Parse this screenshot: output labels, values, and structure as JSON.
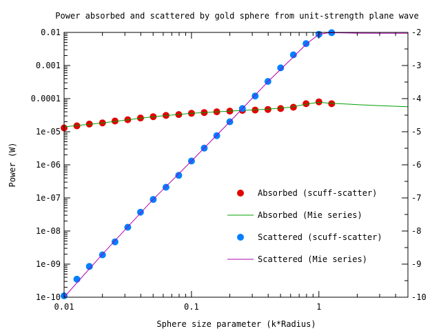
{
  "chart_data": {
    "type": "scatter",
    "title": "Power absorbed and scattered by gold sphere from unit-strength plane wave",
    "xlabel": "Sphere size parameter (k*Radius)",
    "ylabel": "Power (W)",
    "x_scale": "log",
    "y_scale": "log",
    "xlim": [
      0.01,
      5
    ],
    "ylim": [
      1e-10,
      0.01
    ],
    "y2lim": [
      -10,
      -2
    ],
    "x_ticks": [
      {
        "value": 0.01,
        "label": "0.01"
      },
      {
        "value": 0.1,
        "label": "0.1"
      },
      {
        "value": 1,
        "label": "1"
      }
    ],
    "y_ticks": [
      {
        "value": 1e-10,
        "label": "1e-10"
      },
      {
        "value": 1e-09,
        "label": "1e-09"
      },
      {
        "value": 1e-08,
        "label": "1e-08"
      },
      {
        "value": 1e-07,
        "label": "1e-07"
      },
      {
        "value": 1e-06,
        "label": "1e-06"
      },
      {
        "value": 1e-05,
        "label": "1e-05"
      },
      {
        "value": 0.0001,
        "label": "0.0001"
      },
      {
        "value": 0.001,
        "label": "0.001"
      },
      {
        "value": 0.01,
        "label": "0.01"
      }
    ],
    "y2_ticks": [
      {
        "value": -10,
        "label": "-10"
      },
      {
        "value": -9,
        "label": "-9"
      },
      {
        "value": -8,
        "label": "-8"
      },
      {
        "value": -7,
        "label": "-7"
      },
      {
        "value": -6,
        "label": "-6"
      },
      {
        "value": -5,
        "label": "-5"
      },
      {
        "value": -4,
        "label": "-4"
      },
      {
        "value": -3,
        "label": "-3"
      },
      {
        "value": -2,
        "label": "-2"
      }
    ],
    "grid": false,
    "legend_position": "right",
    "series": [
      {
        "name": "Absorbed (scuff-scatter)",
        "style": "points",
        "color": "#e00000",
        "x": [
          0.01,
          0.0126,
          0.0158,
          0.02,
          0.0251,
          0.0316,
          0.0398,
          0.0501,
          0.0631,
          0.0794,
          0.1,
          0.126,
          0.158,
          0.2,
          0.251,
          0.316,
          0.398,
          0.501,
          0.631,
          0.794,
          1.0,
          1.26
        ],
        "y": [
          1.3e-05,
          1.5e-05,
          1.7e-05,
          1.85e-05,
          2.1e-05,
          2.3e-05,
          2.6e-05,
          2.85e-05,
          3.1e-05,
          3.3e-05,
          3.6e-05,
          3.8e-05,
          4e-05,
          4.2e-05,
          4.4e-05,
          4.5e-05,
          4.7e-05,
          5e-05,
          5.5e-05,
          7e-05,
          8e-05,
          7e-05
        ]
      },
      {
        "name": "Absorbed (Mie series)",
        "style": "line",
        "color": "#00a000",
        "x": [
          0.01,
          0.02,
          0.05,
          0.1,
          0.2,
          0.4,
          0.6,
          0.8,
          1.0,
          1.2,
          1.6,
          2.0,
          3.0,
          5.0
        ],
        "y": [
          1.4e-05,
          1.85e-05,
          2.85e-05,
          3.6e-05,
          4.2e-05,
          4.8e-05,
          5.5e-05,
          6.8e-05,
          7.8e-05,
          7.3e-05,
          6.9e-05,
          6.6e-05,
          6.1e-05,
          5.7e-05
        ]
      },
      {
        "name": "Scattered (scuff-scatter)",
        "style": "points",
        "color": "#0080ff",
        "x": [
          0.01,
          0.0126,
          0.0158,
          0.02,
          0.0251,
          0.0316,
          0.0398,
          0.0501,
          0.0631,
          0.0794,
          0.1,
          0.126,
          0.158,
          0.2,
          0.251,
          0.316,
          0.398,
          0.501,
          0.631,
          0.794,
          1.0,
          1.26
        ],
        "y": [
          1.1e-10,
          3.5e-10,
          8.5e-10,
          1.9e-09,
          4.7e-09,
          1.3e-08,
          3.7e-08,
          9e-08,
          2.1e-07,
          4.8e-07,
          1.3e-06,
          3.2e-06,
          7.6e-06,
          2e-05,
          5e-05,
          0.00012,
          0.00033,
          0.00085,
          0.0021,
          0.0046,
          0.0088,
          0.0098
        ]
      },
      {
        "name": "Scattered (Mie series)",
        "style": "line",
        "color": "#b000b0",
        "x": [
          0.01,
          0.02,
          0.05,
          0.1,
          0.2,
          0.4,
          0.6,
          0.8,
          1.0,
          1.2,
          1.5,
          2.0,
          3.0,
          5.0
        ],
        "y": [
          1e-10,
          2e-09,
          9e-08,
          1.3e-06,
          2e-05,
          0.00033,
          0.0015,
          0.0045,
          0.0088,
          0.0098,
          0.0097,
          0.0095,
          0.0094,
          0.0094
        ]
      }
    ]
  }
}
